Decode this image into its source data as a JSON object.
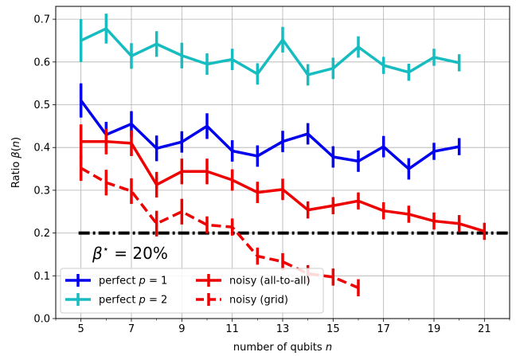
{
  "chart_data": {
    "type": "line",
    "xlabel": "number of qubits n",
    "ylabel": "Ratio β(n)",
    "xlim": [
      4,
      22
    ],
    "ylim": [
      0.0,
      0.73
    ],
    "xticks": [
      5,
      7,
      9,
      11,
      13,
      15,
      17,
      19,
      21
    ],
    "yticks": [
      0.0,
      0.1,
      0.2,
      0.3,
      0.4,
      0.5,
      0.6,
      0.7
    ],
    "xtick_labels": [
      "5",
      "7",
      "9",
      "11",
      "13",
      "15",
      "17",
      "19",
      "21"
    ],
    "ytick_labels": [
      "0.0",
      "0.1",
      "0.2",
      "0.3",
      "0.4",
      "0.5",
      "0.6",
      "0.7"
    ],
    "grid": true,
    "legend_position": "bottom-left",
    "series": [
      {
        "name": "perfect p = 1",
        "legend_prefix": "perfect ",
        "legend_var": "p",
        "legend_suffix": " = 1",
        "color": "#0000ee",
        "style": "solid",
        "x": [
          5,
          6,
          7,
          8,
          9,
          10,
          11,
          12,
          13,
          14,
          15,
          16,
          17,
          18,
          19,
          20
        ],
        "y": [
          0.51,
          0.43,
          0.455,
          0.398,
          0.413,
          0.45,
          0.392,
          0.38,
          0.414,
          0.432,
          0.378,
          0.368,
          0.402,
          0.35,
          0.391,
          0.402
        ],
        "err": [
          0.04,
          0.03,
          0.03,
          0.03,
          0.025,
          0.03,
          0.025,
          0.025,
          0.025,
          0.025,
          0.025,
          0.025,
          0.025,
          0.025,
          0.02,
          0.02
        ]
      },
      {
        "name": "perfect p = 2",
        "legend_prefix": "perfect ",
        "legend_var": "p",
        "legend_suffix": " = 2",
        "color": "#16bcc0",
        "style": "solid",
        "x": [
          5,
          6,
          7,
          8,
          9,
          10,
          11,
          12,
          13,
          14,
          15,
          16,
          17,
          18,
          19,
          20
        ],
        "y": [
          0.65,
          0.678,
          0.614,
          0.642,
          0.615,
          0.595,
          0.606,
          0.572,
          0.652,
          0.57,
          0.585,
          0.635,
          0.592,
          0.576,
          0.611,
          0.598
        ],
        "err": [
          0.05,
          0.035,
          0.03,
          0.03,
          0.03,
          0.025,
          0.025,
          0.025,
          0.03,
          0.025,
          0.025,
          0.025,
          0.02,
          0.02,
          0.02,
          0.02
        ]
      },
      {
        "name": "noisy (all-to-all)",
        "color": "#ee0000",
        "style": "solid",
        "x": [
          5,
          6,
          7,
          8,
          9,
          10,
          11,
          12,
          13,
          14,
          15,
          16,
          17,
          18,
          19,
          20,
          21
        ],
        "y": [
          0.414,
          0.414,
          0.41,
          0.313,
          0.344,
          0.344,
          0.324,
          0.295,
          0.302,
          0.254,
          0.264,
          0.275,
          0.252,
          0.244,
          0.228,
          0.222,
          0.204
        ],
        "err": [
          0.04,
          0.03,
          0.03,
          0.03,
          0.03,
          0.03,
          0.025,
          0.025,
          0.025,
          0.02,
          0.02,
          0.02,
          0.02,
          0.02,
          0.02,
          0.02,
          0.02
        ]
      },
      {
        "name": "noisy (grid)",
        "color": "#ee0000",
        "style": "dashed",
        "x": [
          5,
          6,
          7,
          8,
          9,
          10,
          11,
          12,
          13,
          14,
          15,
          16
        ],
        "y": [
          0.352,
          0.318,
          0.298,
          0.222,
          0.25,
          0.219,
          0.214,
          0.146,
          0.133,
          0.105,
          0.097,
          0.072
        ],
        "err": [
          0.03,
          0.03,
          0.03,
          0.03,
          0.03,
          0.02,
          0.02,
          0.02,
          0.02,
          0.02,
          0.02,
          0.02
        ]
      }
    ],
    "reference_line": {
      "y": 0.2,
      "color": "#000000",
      "style": "dash-dot",
      "label_greek": "β",
      "label_sup": "⋆",
      "label_rest": " = 20%"
    }
  }
}
